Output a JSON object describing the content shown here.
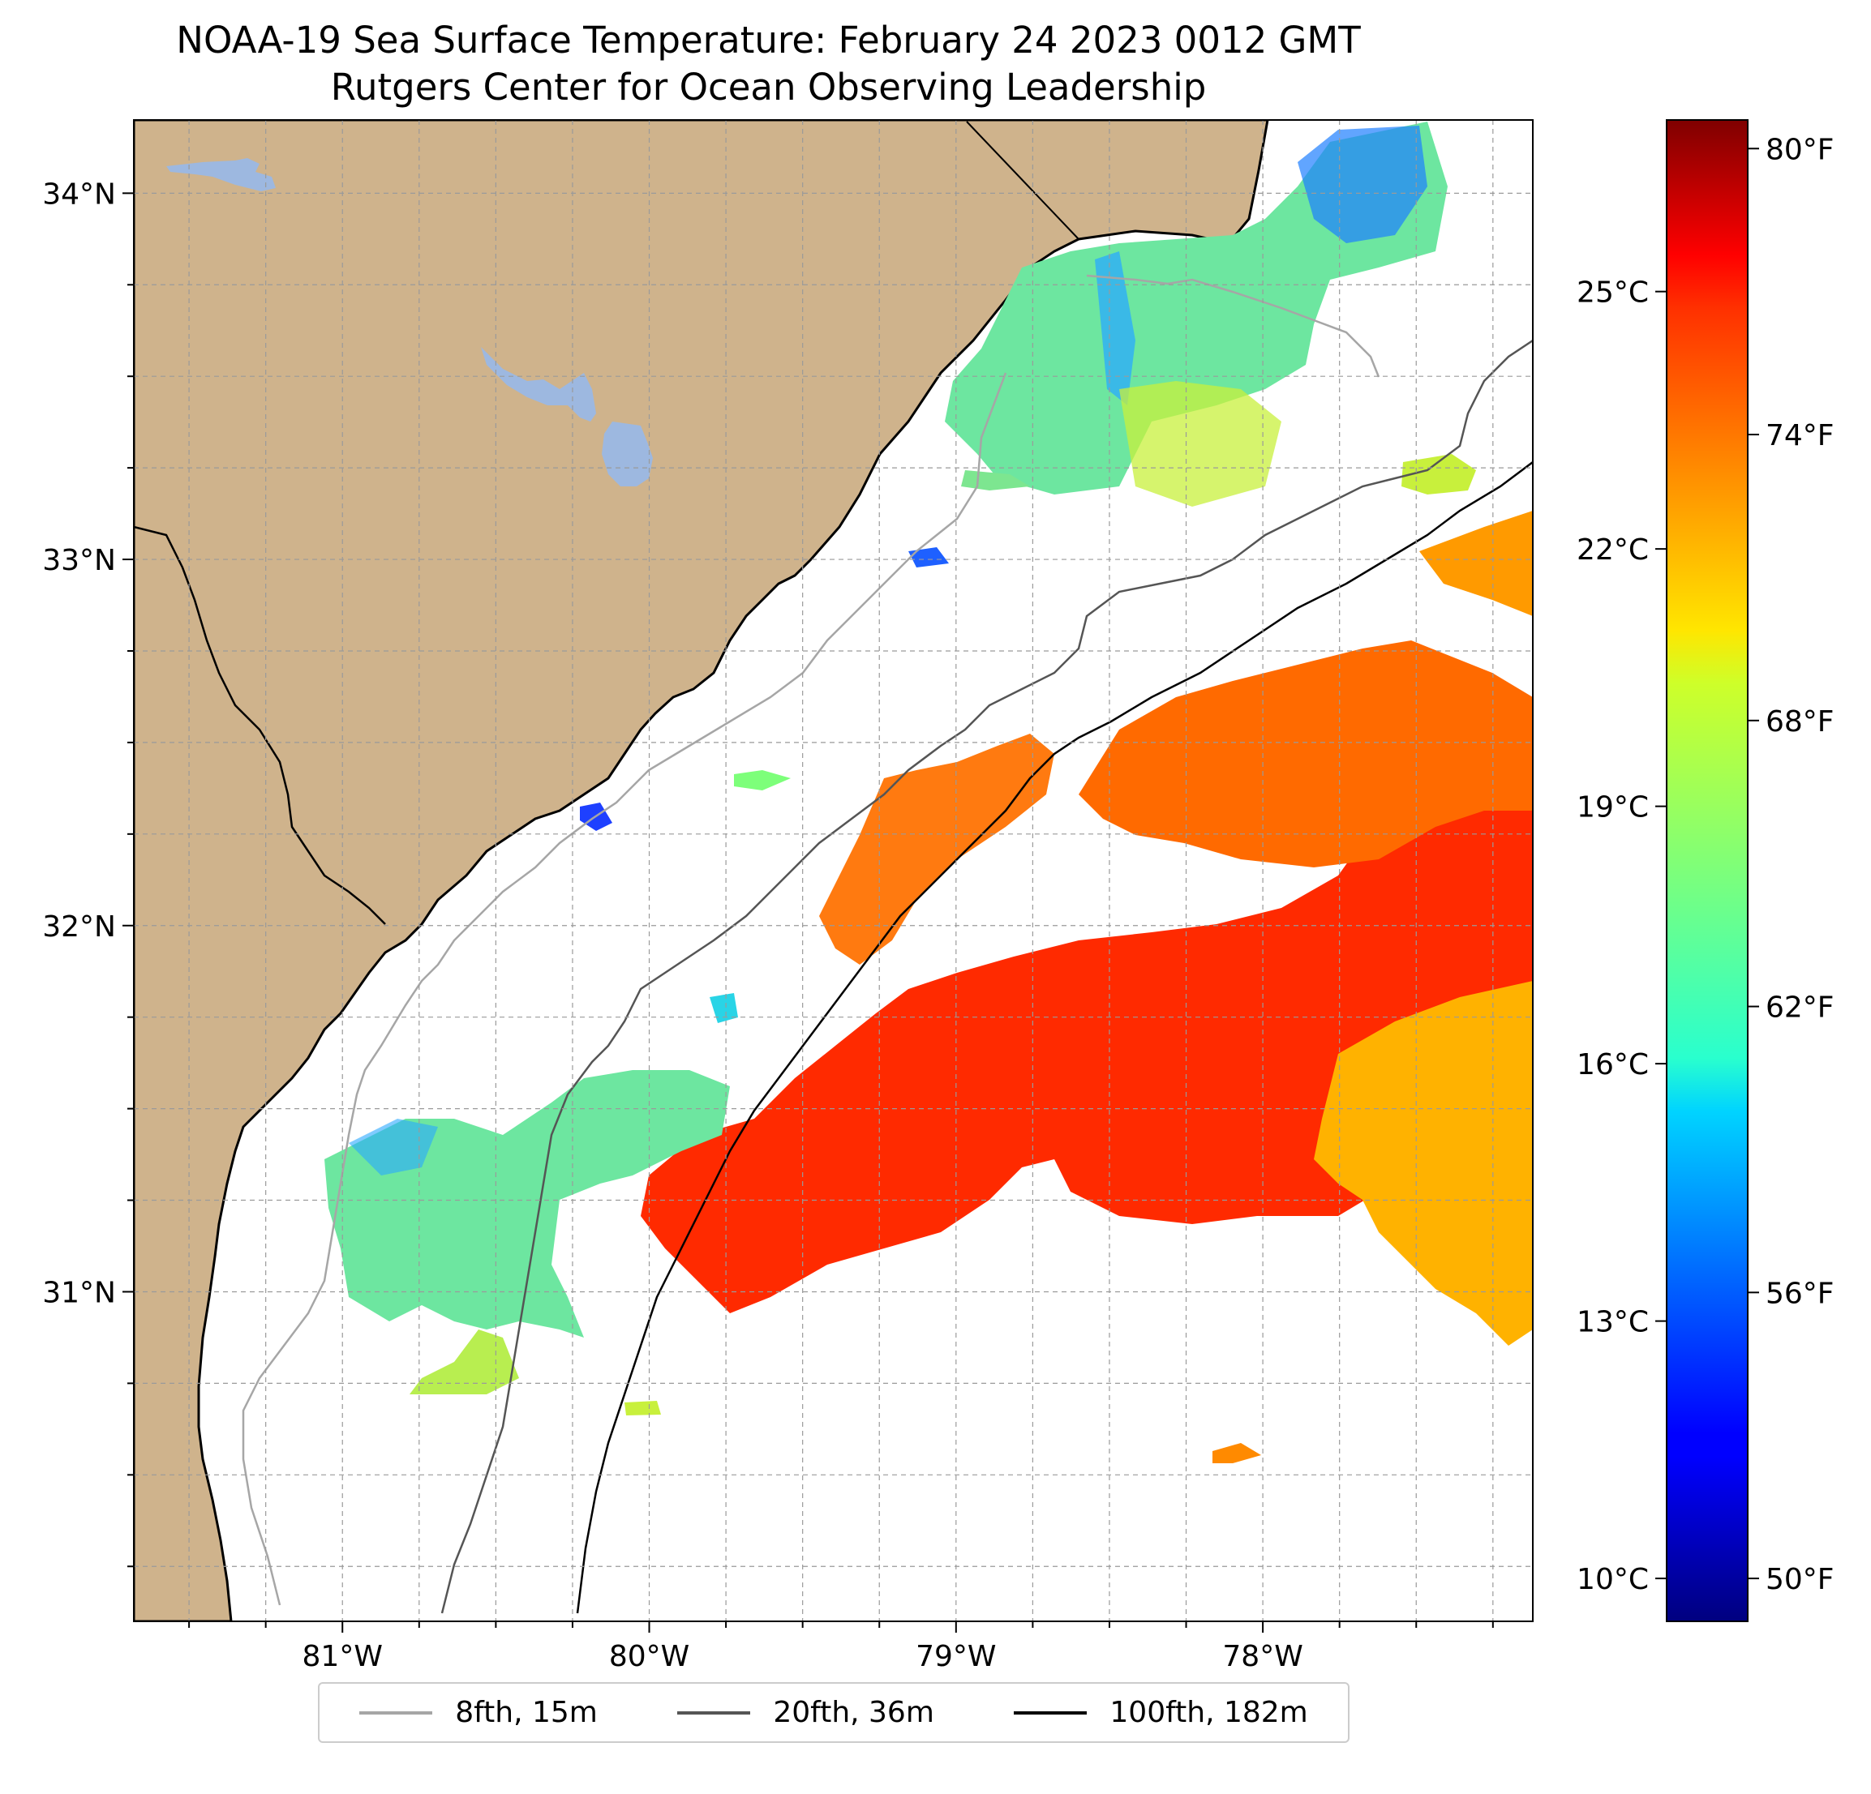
{
  "title": {
    "line1": "NOAA-19 Sea Surface Temperature: February 24 2023 0012 GMT",
    "line2": "Rutgers Center for Ocean Observing Leadership"
  },
  "map": {
    "lat_range": [
      30.1,
      34.2
    ],
    "lon_range": [
      -81.68,
      -77.12
    ],
    "lat_labels": [
      "34°N",
      "33°N",
      "32°N",
      "31°N"
    ],
    "lat_values": [
      34,
      33,
      32,
      31
    ],
    "lon_labels": [
      "81°W",
      "80°W",
      "79°W",
      "78°W"
    ],
    "lon_values": [
      -81,
      -80,
      -79,
      -78
    ],
    "land_color": "#cfb38c",
    "lake_color": "#9db8e0",
    "grid": true
  },
  "colorbar": {
    "colormap": "jet",
    "range_c": [
      9.5,
      27
    ],
    "celsius_labels": [
      "25°C",
      "22°C",
      "19°C",
      "16°C",
      "13°C",
      "10°C"
    ],
    "celsius_values": [
      25,
      22,
      19,
      16,
      13,
      10
    ],
    "fahrenheit_labels": [
      "80°F",
      "74°F",
      "68°F",
      "62°F",
      "56°F",
      "50°F"
    ],
    "fahrenheit_values": [
      80,
      74,
      68,
      62,
      56,
      50
    ]
  },
  "legend": {
    "items": [
      {
        "label": "8fth, 15m",
        "color": "#a6a6a6"
      },
      {
        "label": "20fth, 36m",
        "color": "#555555"
      },
      {
        "label": "100fth, 182m",
        "color": "#000000"
      }
    ]
  }
}
